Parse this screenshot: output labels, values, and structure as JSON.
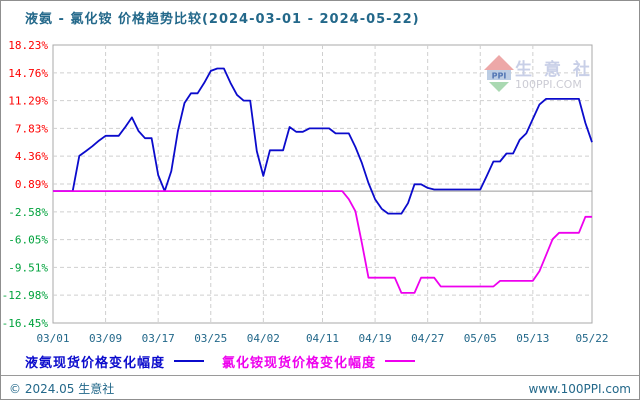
{
  "title": "液氨 - 氯化铵 价格趋势比较(2024-03-01 - 2024-05-22)",
  "legend": [
    {
      "label": "液氨现货价格变化幅度",
      "color": "#0b0bcc"
    },
    {
      "label": "氯化铵现货价格变化幅度",
      "color": "#ee00ee"
    }
  ],
  "footer": {
    "left": "© 2024.05 生意社",
    "right": "www.100PPI.com"
  },
  "watermark": {
    "logo_text": "PPI",
    "brand": "生 意 社",
    "site": "100PPI.COM"
  },
  "colors": {
    "text_teal": "#23688a",
    "tick_positive": "#fe0000",
    "tick_negative": "#00a23c",
    "gridline": "#cfcfcf",
    "plot_border": "#a8a8a8",
    "zero_line": "#9a9a9a",
    "series_ammonia": "#0b0bcc",
    "series_ammonium_chloride": "#ee00ee"
  },
  "chart_data": {
    "type": "line",
    "title": "液氨 - 氯化铵 价格趋势比较",
    "date_range": [
      "2024-03-01",
      "2024-05-22"
    ],
    "unit": "%",
    "grid": true,
    "legend_position": "bottom",
    "ylim": [
      -16.45,
      18.23
    ],
    "y_ticks": [
      18.23,
      14.76,
      11.29,
      7.83,
      4.36,
      0.89,
      -2.58,
      -6.05,
      -9.51,
      -12.98,
      -16.45
    ],
    "x_tick_labels": [
      "03/01",
      "03/09",
      "03/17",
      "03/25",
      "04/02",
      "04/11",
      "04/19",
      "04/27",
      "05/05",
      "05/13",
      "05/22"
    ],
    "x_tick_days": [
      0,
      8,
      16,
      24,
      32,
      41,
      49,
      57,
      65,
      73,
      82
    ],
    "days_total": 82,
    "series": [
      {
        "name": "液氨现货价格变化幅度",
        "color": "#0b0bcc",
        "values": [
          0,
          0,
          0,
          0,
          4.4,
          5,
          5.6,
          6.3,
          6.9,
          6.9,
          6.9,
          8,
          9.2,
          7.5,
          6.6,
          6.6,
          2,
          0,
          2.5,
          7.5,
          11,
          12.2,
          12.2,
          13.5,
          15,
          15.3,
          15.3,
          13.5,
          12,
          11.3,
          11.3,
          5,
          1.9,
          5.1,
          5.1,
          5.1,
          8,
          7.4,
          7.4,
          7.83,
          7.83,
          7.83,
          7.83,
          7.2,
          7.2,
          7.2,
          5.5,
          3.5,
          1,
          -1,
          -2.2,
          -2.8,
          -2.8,
          -2.8,
          -1.5,
          0.85,
          0.85,
          0.4,
          0.2,
          0.2,
          0.2,
          0.2,
          0.2,
          0.2,
          0.2,
          0.2,
          1.9,
          3.7,
          3.7,
          4.7,
          4.7,
          6.4,
          7.2,
          9,
          10.8,
          11.5,
          11.5,
          11.5,
          11.5,
          11.5,
          11.5,
          8.5,
          6.1
        ]
      },
      {
        "name": "氯化铵现货价格变化幅度",
        "color": "#ee00ee",
        "values": [
          0,
          0,
          0,
          0,
          0,
          0,
          0,
          0,
          0,
          0,
          0,
          0,
          0,
          0,
          0,
          0,
          0,
          0,
          0,
          0,
          0,
          0,
          0,
          0,
          0,
          0,
          0,
          0,
          0,
          0,
          0,
          0,
          0,
          0,
          0,
          0,
          0,
          0,
          0,
          0,
          0,
          0,
          0,
          0,
          0,
          -1,
          -2.5,
          -6.5,
          -10.8,
          -10.8,
          -10.8,
          -10.8,
          -10.8,
          -12.7,
          -12.7,
          -12.7,
          -10.8,
          -10.8,
          -10.8,
          -11.9,
          -11.9,
          -11.9,
          -11.9,
          -11.9,
          -11.9,
          -11.9,
          -11.9,
          -11.9,
          -11.2,
          -11.2,
          -11.2,
          -11.2,
          -11.2,
          -11.2,
          -10,
          -8,
          -6,
          -5.2,
          -5.2,
          -5.2,
          -5.2,
          -3.2,
          -3.2
        ]
      }
    ]
  }
}
